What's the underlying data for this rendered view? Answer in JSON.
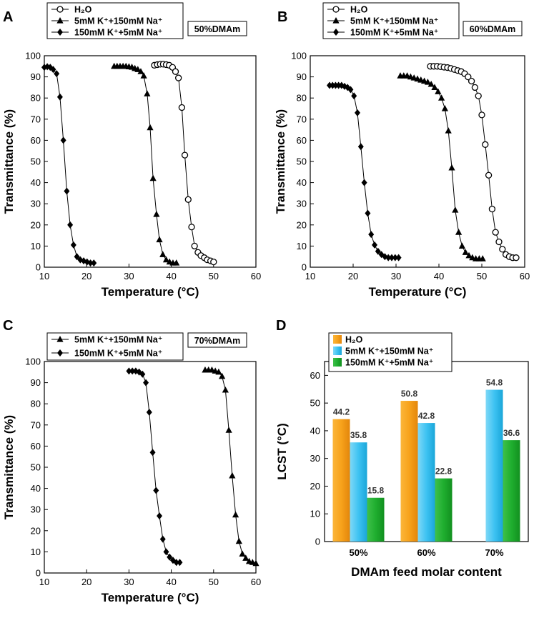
{
  "chart_data": [
    {
      "panel": "A",
      "type": "line",
      "condition": "50%DMAm",
      "xlabel": "Temperature (°C)",
      "ylabel": "Transmittance (%)",
      "xlim": [
        10,
        60
      ],
      "ylim": [
        0,
        100
      ],
      "xticks": [
        10,
        20,
        30,
        40,
        50,
        60
      ],
      "yticks": [
        0,
        10,
        20,
        30,
        40,
        50,
        60,
        70,
        80,
        90,
        100
      ],
      "legend": [
        {
          "label": "H₂O",
          "marker": "circle"
        },
        {
          "label": "5mM K⁺+150mM Na⁺",
          "marker": "triangle"
        },
        {
          "label": "150mM K⁺+5mM Na⁺",
          "marker": "diamond"
        }
      ],
      "series": [
        {
          "name": "H₂O",
          "marker": "circle",
          "x": [
            36,
            36.7,
            37.4,
            38.1,
            38.8,
            39.5,
            40.3,
            41.0,
            41.7,
            42.5,
            43.2,
            44.0,
            44.8,
            45.5,
            46.3,
            47.0,
            47.8,
            48.5,
            49.3,
            50.0
          ],
          "y": [
            95.5,
            95.8,
            96,
            96,
            95.8,
            95.5,
            94.5,
            92.5,
            89.5,
            75.5,
            53,
            32,
            19,
            10,
            7,
            5.5,
            4.5,
            3.5,
            3,
            2.5
          ]
        },
        {
          "name": "5mM K⁺+150mM Na⁺",
          "marker": "triangle",
          "x": [
            26.5,
            27.2,
            27.9,
            28.6,
            29.3,
            30.0,
            30.7,
            31.4,
            32.1,
            32.8,
            33.5,
            34.3,
            35.0,
            35.7,
            36.5,
            37.2,
            38.0,
            38.8,
            39.6,
            40.4,
            41.2
          ],
          "y": [
            95,
            95,
            95,
            95,
            95,
            94.8,
            94.6,
            94,
            93.5,
            92.5,
            90.5,
            82,
            66,
            42,
            25,
            13,
            6,
            3.5,
            2.5,
            2,
            2
          ]
        },
        {
          "name": "150mM K⁺+5mM Na⁺",
          "marker": "diamond",
          "x": [
            10.0,
            10.7,
            11.4,
            12.1,
            12.9,
            13.7,
            14.5,
            15.3,
            16.1,
            16.9,
            17.7,
            18.5,
            19.3,
            20.1,
            20.9,
            21.7
          ],
          "y": [
            94.5,
            94.8,
            94.5,
            93.5,
            91.5,
            80.5,
            60,
            36,
            20,
            10.5,
            5,
            3.5,
            3,
            2.5,
            2,
            2
          ]
        }
      ]
    },
    {
      "panel": "B",
      "type": "line",
      "condition": "60%DMAm",
      "xlabel": "Temperature (°C)",
      "ylabel": "Transmittance (%)",
      "xlim": [
        10,
        60
      ],
      "ylim": [
        0,
        100
      ],
      "xticks": [
        10,
        20,
        30,
        40,
        50,
        60
      ],
      "yticks": [
        0,
        10,
        20,
        30,
        40,
        50,
        60,
        70,
        80,
        90,
        100
      ],
      "legend": [
        {
          "label": "H₂O",
          "marker": "circle"
        },
        {
          "label": "5mM K⁺+150mM Na⁺",
          "marker": "triangle"
        },
        {
          "label": "150mM K⁺+5mM Na⁺",
          "marker": "diamond"
        }
      ],
      "series": [
        {
          "name": "H₂O",
          "marker": "circle",
          "x": [
            38.0,
            38.8,
            39.6,
            40.4,
            41.2,
            42.0,
            42.8,
            43.6,
            44.4,
            45.2,
            46.0,
            46.8,
            47.6,
            48.4,
            49.2,
            50.0,
            50.8,
            51.6,
            52.4,
            53.2,
            54.0,
            54.8,
            55.6,
            56.4,
            57.2,
            58.0
          ],
          "y": [
            95,
            95,
            95,
            94.8,
            94.6,
            94.4,
            94,
            93.5,
            93,
            92.5,
            91.5,
            90,
            88,
            85,
            81,
            72,
            58,
            43.5,
            27.5,
            16.5,
            12,
            8.5,
            6,
            5,
            4.5,
            4.5
          ]
        },
        {
          "name": "5mM K⁺+150mM Na⁺",
          "marker": "triangle",
          "x": [
            31,
            31.8,
            32.6,
            33.4,
            34.2,
            35.0,
            35.8,
            36.6,
            37.4,
            38.2,
            39.0,
            39.8,
            40.6,
            41.4,
            42.2,
            43.0,
            43.8,
            44.6,
            45.4,
            46.2,
            47.0,
            47.8,
            48.6,
            49.4,
            50.2
          ],
          "y": [
            90.5,
            90.5,
            90.5,
            90,
            89.5,
            89,
            88.5,
            88,
            87.5,
            86.5,
            85,
            83,
            80,
            75,
            64.5,
            47,
            27,
            16.5,
            10,
            7,
            5.5,
            4.5,
            4,
            4,
            4
          ]
        },
        {
          "name": "150mM K⁺+5mM Na⁺",
          "marker": "diamond",
          "x": [
            14.5,
            15.2,
            15.9,
            16.6,
            17.3,
            18.0,
            18.7,
            19.4,
            20.2,
            21.0,
            21.8,
            22.6,
            23.4,
            24.2,
            25.0,
            25.8,
            26.6,
            27.4,
            28.2,
            29.0,
            29.8,
            30.6
          ],
          "y": [
            86,
            86,
            86,
            86,
            86,
            85.5,
            85,
            84,
            81,
            73,
            57,
            40,
            25.5,
            15.5,
            10.5,
            7.5,
            6,
            5,
            4.5,
            4.5,
            4.5,
            4.5
          ]
        }
      ]
    },
    {
      "panel": "C",
      "type": "line",
      "condition": "70%DMAm",
      "xlabel": "Temperature (°C)",
      "ylabel": "Transmittance (%)",
      "xlim": [
        10,
        60
      ],
      "ylim": [
        0,
        100
      ],
      "xticks": [
        10,
        20,
        30,
        40,
        50,
        60
      ],
      "yticks": [
        0,
        10,
        20,
        30,
        40,
        50,
        60,
        70,
        80,
        90,
        100
      ],
      "legend": [
        {
          "label": "5mM K⁺+150mM Na⁺",
          "marker": "triangle"
        },
        {
          "label": "150mM K⁺+5mM Na⁺",
          "marker": "diamond"
        }
      ],
      "series": [
        {
          "name": "5mM K⁺+150mM Na⁺",
          "marker": "triangle",
          "x": [
            48.0,
            48.8,
            49.6,
            50.4,
            51.2,
            52.0,
            52.8,
            53.6,
            54.4,
            55.2,
            56.0,
            56.8,
            57.6,
            58.4,
            59.2,
            60.0
          ],
          "y": [
            96,
            96,
            96,
            95.5,
            95,
            93,
            86.5,
            67.5,
            46,
            27.5,
            15,
            9,
            7,
            5.5,
            5,
            4.5
          ]
        },
        {
          "name": "150mM K⁺+5mM Na⁺",
          "marker": "diamond",
          "x": [
            30.0,
            30.8,
            31.6,
            32.4,
            33.2,
            34.0,
            34.8,
            35.6,
            36.4,
            37.2,
            38.0,
            38.8,
            39.6,
            40.4,
            41.2,
            42.0
          ],
          "y": [
            95.5,
            95.5,
            95.5,
            95,
            94,
            90,
            76,
            57,
            39,
            27,
            16,
            10,
            7.5,
            6,
            5,
            5
          ]
        }
      ]
    },
    {
      "panel": "D",
      "type": "bar",
      "xlabel": "DMAm feed molar content",
      "ylabel": "LCST (°C)",
      "ylim": [
        0,
        65
      ],
      "yticks": [
        0,
        10,
        20,
        30,
        40,
        50,
        60
      ],
      "categories": [
        "50%",
        "60%",
        "70%"
      ],
      "series": [
        {
          "name": "H₂O",
          "color": "#f7a21b",
          "values": [
            44.2,
            50.8,
            null
          ],
          "labels": [
            "44.2",
            "50.8",
            ""
          ]
        },
        {
          "name": "5mM K⁺+150mM Na⁺",
          "color": "#3ec3f2",
          "values": [
            35.8,
            42.8,
            54.8
          ],
          "labels": [
            "35.8",
            "42.8",
            "54.8"
          ]
        },
        {
          "name": "150mM K⁺+5mM Na⁺",
          "color": "#1fae2f",
          "values": [
            15.8,
            22.8,
            36.6
          ],
          "labels": [
            "15.8",
            "22.8",
            "36.6"
          ]
        }
      ]
    }
  ]
}
